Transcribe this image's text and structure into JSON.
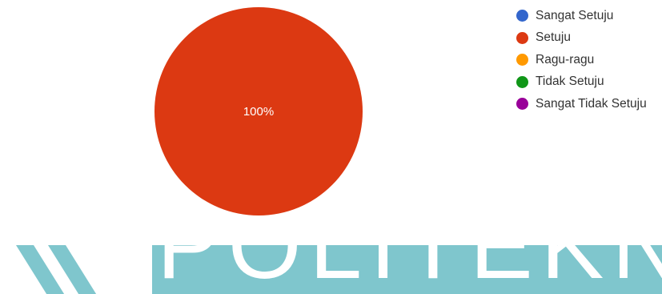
{
  "chart_data": {
    "type": "pie",
    "categories": [
      "Sangat Setuju",
      "Setuju",
      "Ragu-ragu",
      "Tidak Setuju",
      "Sangat Tidak Setuju"
    ],
    "values": [
      0,
      100,
      0,
      0,
      0
    ],
    "colors": [
      "#3366cc",
      "#dc3912",
      "#ff9900",
      "#109618",
      "#990099"
    ],
    "slice_labels": [
      "100%"
    ],
    "legend_position": "right"
  },
  "watermark": {
    "text": "POLITEKNIK"
  }
}
